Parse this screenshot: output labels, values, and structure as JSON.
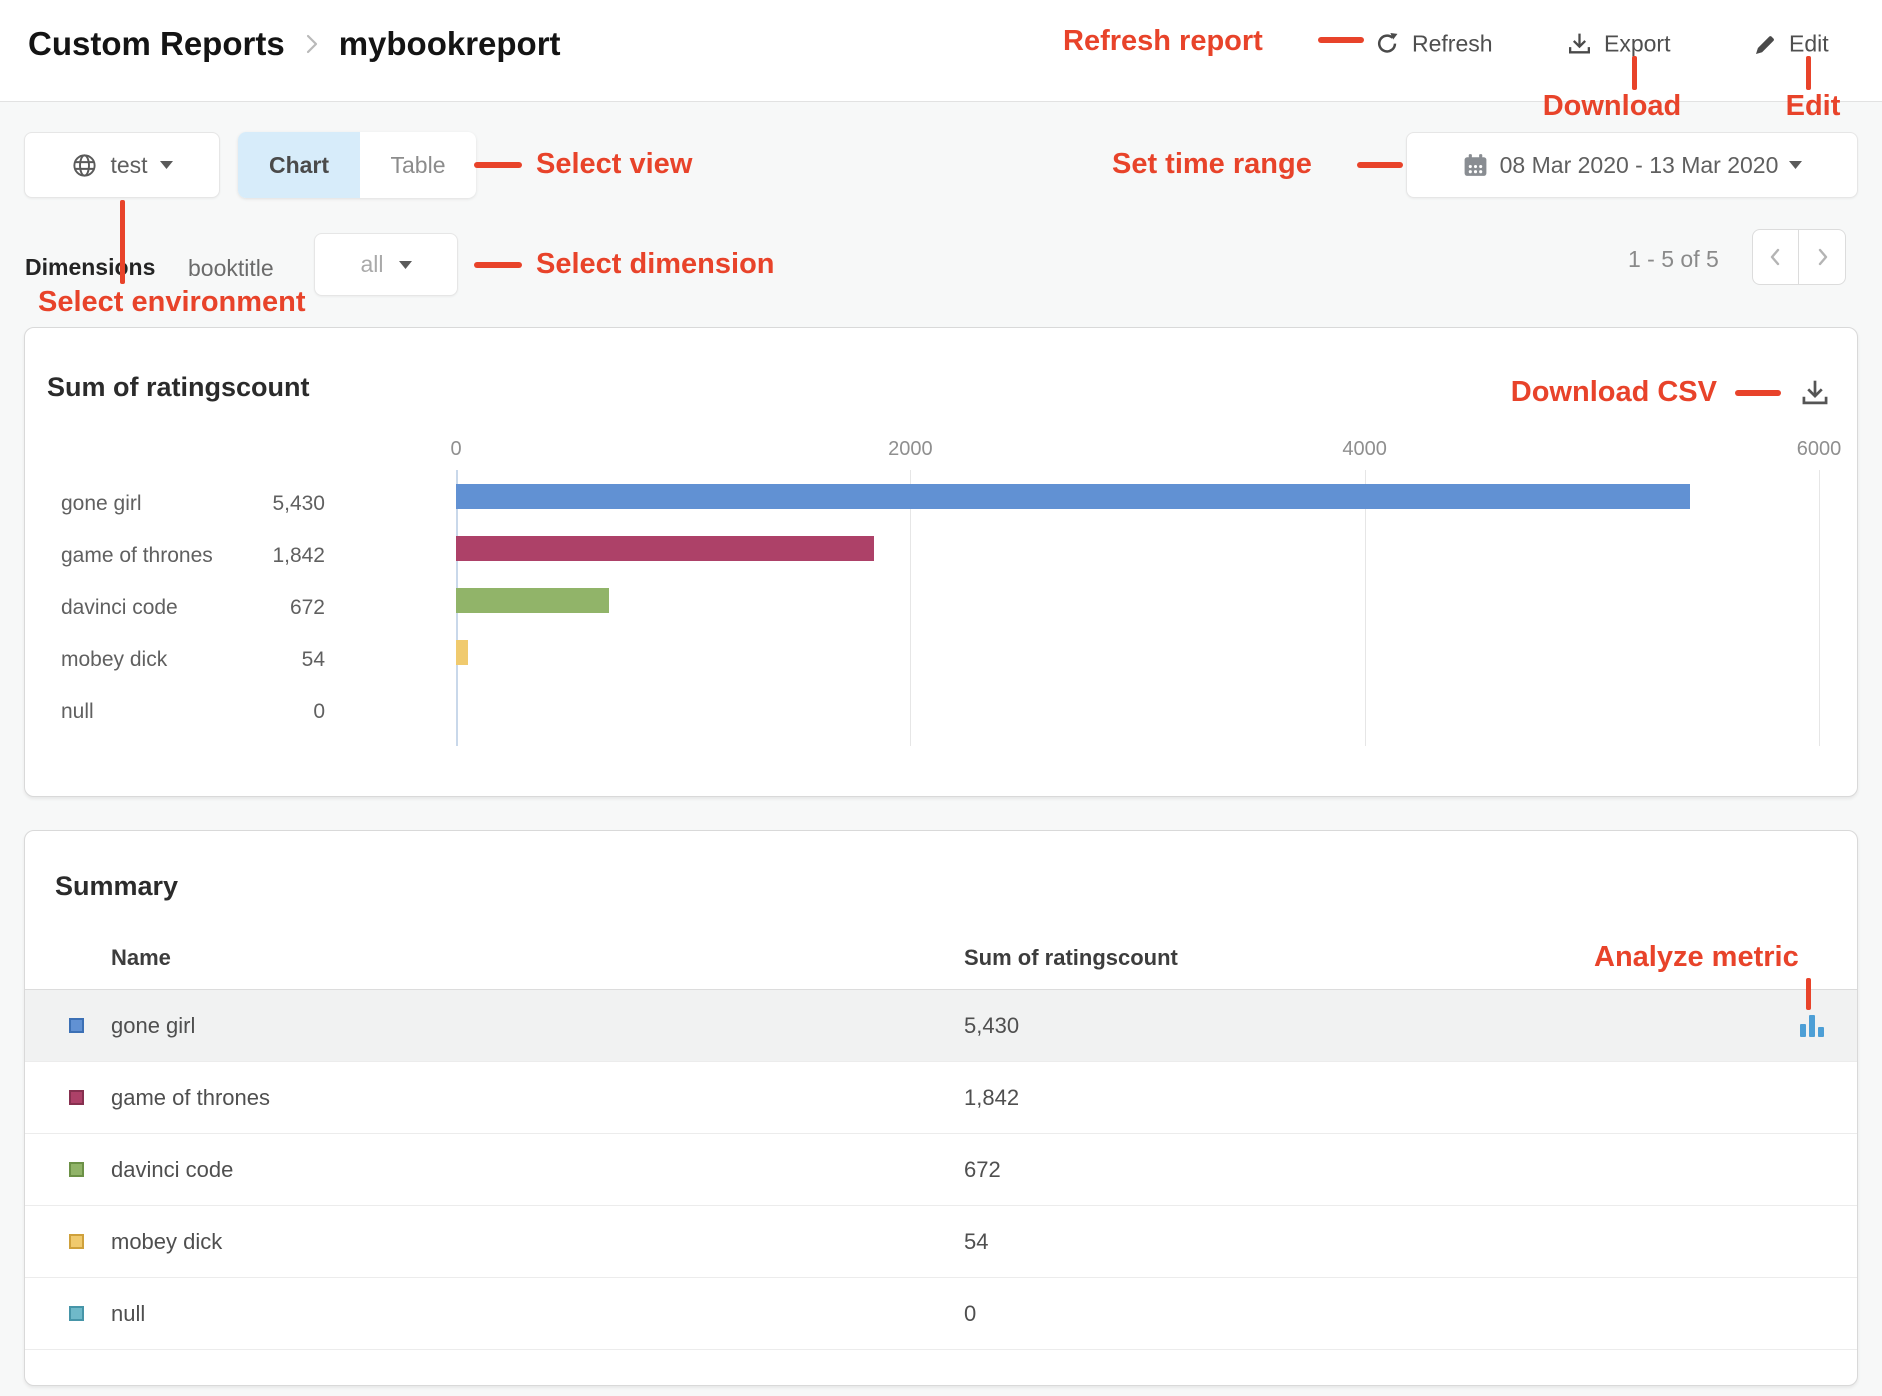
{
  "colors": {
    "annotation": "#e8432a",
    "active_tab_bg": "#d7ecfa",
    "analyze_icon": "#4d9fd6",
    "bar_blue": "#6191d3",
    "bar_crimson": "#ad4168",
    "bar_green": "#91b469",
    "bar_yellow": "#f0ca6e",
    "swatch_teal": "#6fb9c9"
  },
  "header": {
    "breadcrumb_root": "Custom Reports",
    "breadcrumb_current": "mybookreport",
    "refresh_label": "Refresh",
    "export_label": "Export",
    "edit_label": "Edit"
  },
  "annotations": {
    "refresh_report": "Refresh report",
    "download": "Download",
    "edit": "Edit",
    "select_view": "Select view",
    "set_time_range": "Set time range",
    "select_dimension": "Select dimension",
    "select_environment": "Select environment",
    "download_csv": "Download CSV",
    "analyze_metric": "Analyze metric"
  },
  "toolbar": {
    "environment": "test",
    "tab_chart": "Chart",
    "tab_table": "Table",
    "date_range": "08 Mar 2020 - 13 Mar 2020"
  },
  "dimensions_bar": {
    "label": "Dimensions",
    "dimension_name": "booktitle",
    "dimension_value": "all",
    "pagination": "1 - 5 of 5"
  },
  "chart_card": {
    "title": "Sum of ratingscount"
  },
  "chart_data": {
    "type": "bar",
    "orientation": "horizontal",
    "title": "Sum of ratingscount",
    "categories": [
      "gone girl",
      "game of thrones",
      "davinci code",
      "mobey dick",
      "null"
    ],
    "values": [
      5430,
      1842,
      672,
      54,
      0
    ],
    "value_labels": [
      "5,430",
      "1,842",
      "672",
      "54",
      "0"
    ],
    "bar_colors": [
      "#6191d3",
      "#ad4168",
      "#91b469",
      "#f0ca6e",
      "#6fb9c9"
    ],
    "xlim": [
      0,
      6000
    ],
    "x_ticks": [
      "0",
      "2000",
      "4000",
      "6000"
    ],
    "grid": true,
    "legend": false
  },
  "summary": {
    "title": "Summary",
    "columns": [
      "Name",
      "Sum of ratingscount"
    ],
    "rows": [
      {
        "name": "gone girl",
        "value": "5,430",
        "swatch": "#6191d3",
        "swatch_border": "#3c70b5"
      },
      {
        "name": "game of thrones",
        "value": "1,842",
        "swatch": "#ad4168",
        "swatch_border": "#86304f"
      },
      {
        "name": "davinci code",
        "value": "672",
        "swatch": "#91b469",
        "swatch_border": "#6c9147"
      },
      {
        "name": "mobey dick",
        "value": "54",
        "swatch": "#f0ca6e",
        "swatch_border": "#cfa13c"
      },
      {
        "name": "null",
        "value": "0",
        "swatch": "#6fb9c9",
        "swatch_border": "#4695a8"
      }
    ]
  }
}
